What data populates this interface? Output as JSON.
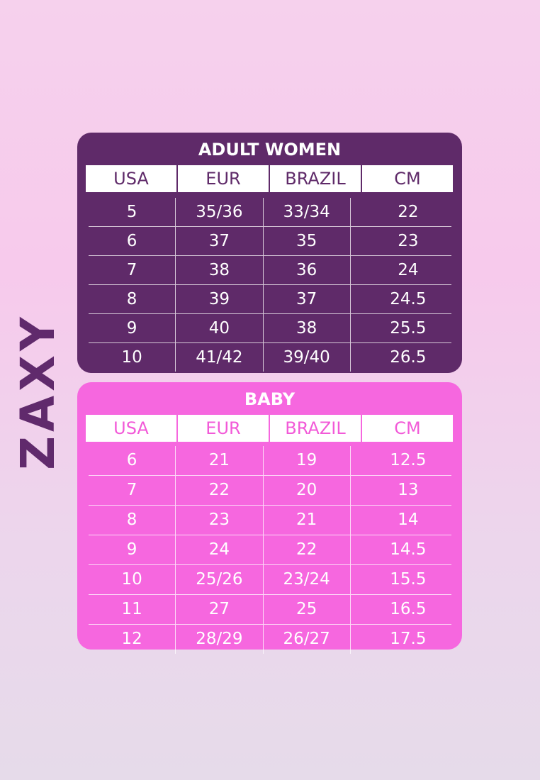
{
  "brand": {
    "name": "ZAXY"
  },
  "colors": {
    "adult_panel": "#5f2a69",
    "baby_panel": "#f667df",
    "brand_text": "#602a6c"
  },
  "adult": {
    "title": "ADULT WOMEN",
    "headers": [
      "USA",
      "EUR",
      "BRAZIL",
      "CM"
    ],
    "rows": [
      [
        "5",
        "35/36",
        "33/34",
        "22"
      ],
      [
        "6",
        "37",
        "35",
        "23"
      ],
      [
        "7",
        "38",
        "36",
        "24"
      ],
      [
        "8",
        "39",
        "37",
        "24.5"
      ],
      [
        "9",
        "40",
        "38",
        "25.5"
      ],
      [
        "10",
        "41/42",
        "39/40",
        "26.5"
      ]
    ]
  },
  "baby": {
    "title": "BABY",
    "headers": [
      "USA",
      "EUR",
      "BRAZIL",
      "CM"
    ],
    "rows": [
      [
        "6",
        "21",
        "19",
        "12.5"
      ],
      [
        "7",
        "22",
        "20",
        "13"
      ],
      [
        "8",
        "23",
        "21",
        "14"
      ],
      [
        "9",
        "24",
        "22",
        "14.5"
      ],
      [
        "10",
        "25/26",
        "23/24",
        "15.5"
      ],
      [
        "11",
        "27",
        "25",
        "16.5"
      ],
      [
        "12",
        "28/29",
        "26/27",
        "17.5"
      ]
    ]
  }
}
